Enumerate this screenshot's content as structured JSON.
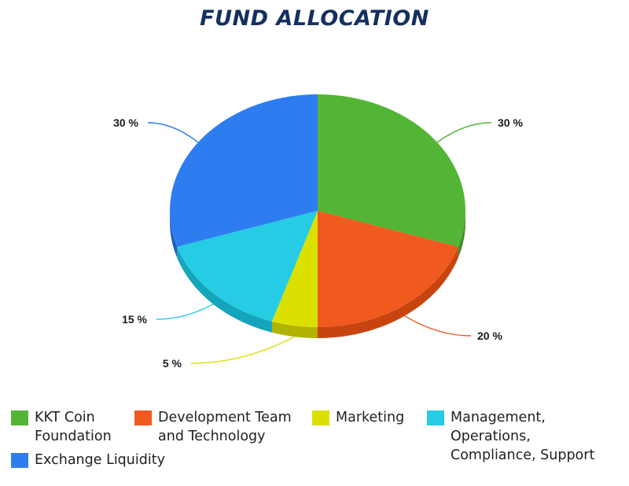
{
  "chart_data": {
    "type": "pie",
    "title": "FUND ALLOCATION",
    "slices": [
      {
        "name": "KKT Coin\nFoundation",
        "value": 30,
        "label": "30 %",
        "color": "#52b535",
        "side": "#3e8f25"
      },
      {
        "name": "Development Team\nand Technology",
        "value": 20,
        "label": "20 %",
        "color": "#f05a1f",
        "side": "#c8440f"
      },
      {
        "name": "Marketing",
        "value": 5,
        "label": "5 %",
        "color": "#dbe000",
        "side": "#b0b300"
      },
      {
        "name": "Management, Operations,\nCompliance, Support",
        "value": 15,
        "label": "15 %",
        "color": "#26cce4",
        "side": "#14a5bb"
      },
      {
        "name": "Exchange Liquidity",
        "value": 30,
        "label": "30 %",
        "color": "#2e7df0",
        "side": "#1c5dc4"
      }
    ],
    "legend_position": "bottom"
  }
}
